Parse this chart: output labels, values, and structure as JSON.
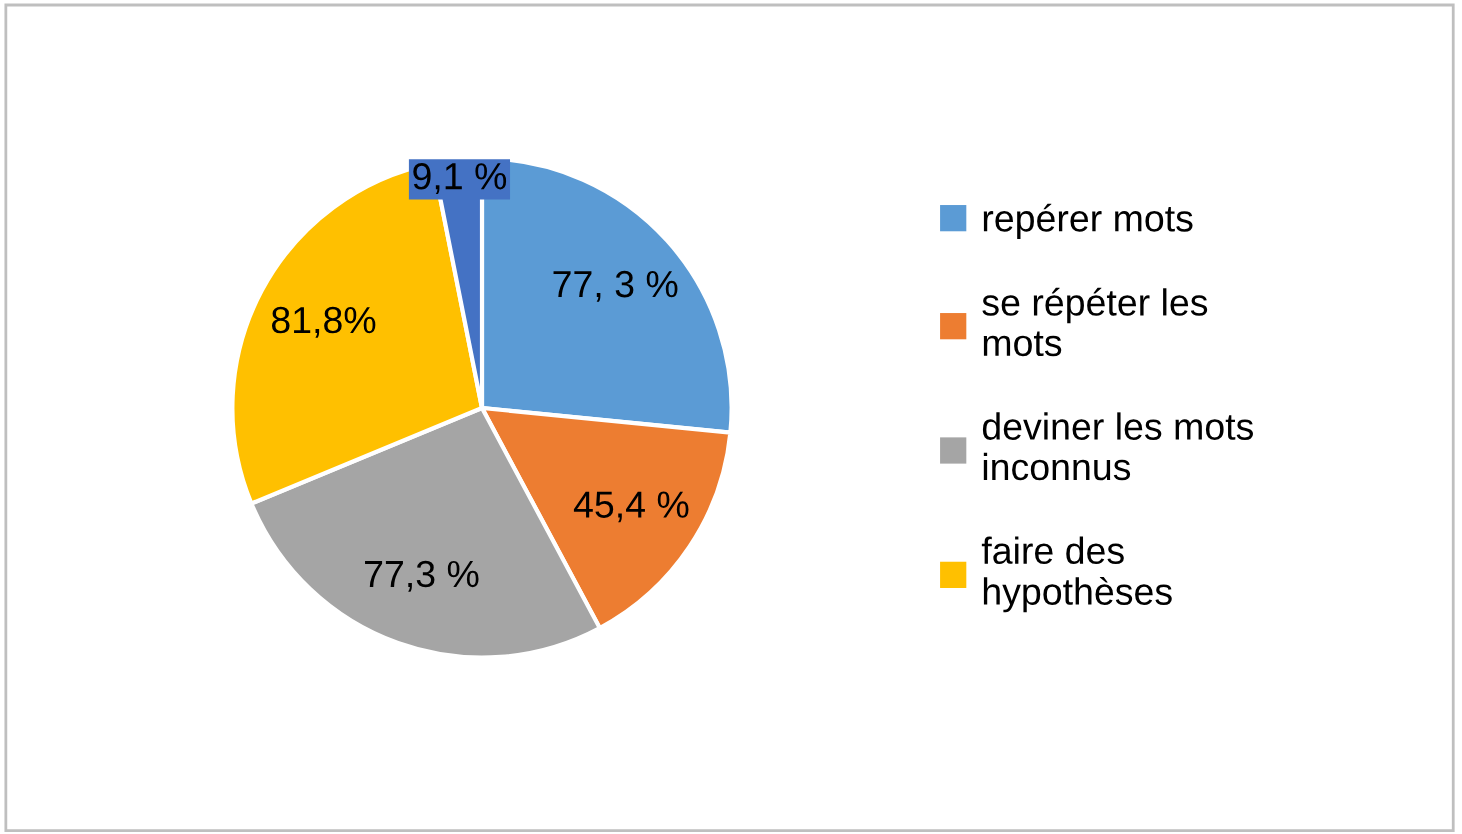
{
  "chart_data": {
    "type": "pie",
    "categories": [
      "repérer mots",
      "se répéter les mots",
      "deviner les mots inconnus",
      "faire des hypothèses",
      null
    ],
    "values": [
      77.3,
      45.4,
      77.3,
      81.8,
      9.1
    ],
    "value_labels": [
      "77, 3 %",
      "45,4 %",
      "77,3 %",
      "81,8%",
      "9,1 %"
    ],
    "colors": [
      "#5b9bd5",
      "#ed7d31",
      "#a5a5a5",
      "#ffc000",
      "#4472c4"
    ],
    "legend": "right"
  }
}
